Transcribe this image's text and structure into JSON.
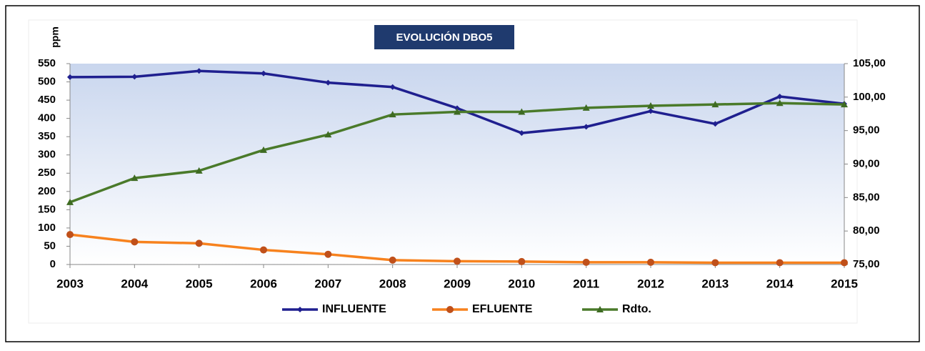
{
  "chart_data": {
    "type": "line",
    "title": "EVOLUCIÓN DBO5",
    "y_label": "ppm",
    "categories": [
      "2003",
      "2004",
      "2005",
      "2006",
      "2007",
      "2008",
      "2009",
      "2010",
      "2011",
      "2012",
      "2013",
      "2014",
      "2015"
    ],
    "series": [
      {
        "name": "INFLUENTE",
        "color": "#1f1f8f",
        "values": [
          513,
          514,
          530,
          523,
          498,
          486,
          428,
          360,
          377,
          420,
          385,
          460,
          440
        ]
      },
      {
        "name": "EFLUENTE",
        "color": "#f7821e",
        "values": [
          82,
          62,
          58,
          40,
          28,
          12,
          9,
          8,
          6,
          6,
          5,
          5,
          5
        ]
      },
      {
        "name": "Rdto.",
        "color": "#4a7a2a",
        "axis": "y2",
        "values": [
          84.3,
          87.9,
          89.0,
          92.1,
          94.4,
          97.4,
          97.8,
          97.8,
          98.4,
          98.7,
          98.9,
          99.1,
          98.9
        ]
      }
    ],
    "ylim": [
      0,
      550
    ],
    "yticks": [
      0,
      50,
      100,
      150,
      200,
      250,
      300,
      350,
      400,
      450,
      500,
      550
    ],
    "y2lim": [
      75,
      105
    ],
    "y2ticks": [
      {
        "value": 75,
        "label": "75,00"
      },
      {
        "value": 80,
        "label": "80,00"
      },
      {
        "value": 85,
        "label": "85,00"
      },
      {
        "value": 90,
        "label": "90,00"
      },
      {
        "value": 95,
        "label": "95,00"
      },
      {
        "value": 100,
        "label": "100,00"
      },
      {
        "value": 105,
        "label": "105,00"
      }
    ],
    "legend": "bottom"
  }
}
